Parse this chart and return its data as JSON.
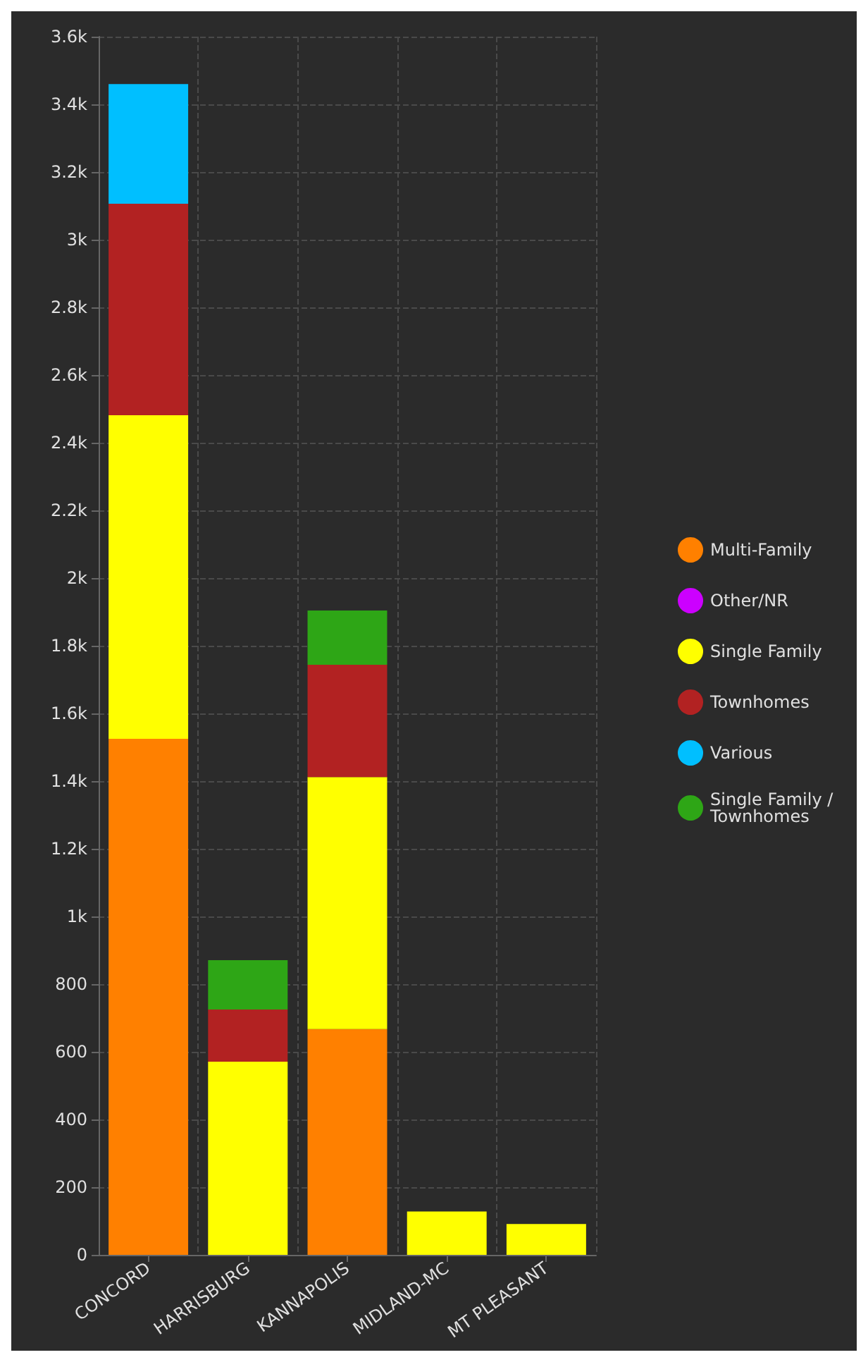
{
  "chart_data": {
    "type": "bar",
    "stacked": true,
    "categories": [
      "CONCORD",
      "HARRISBURG",
      "KANNAPOLIS",
      "MIDLAND-MC",
      "MT PLEASANT"
    ],
    "series": [
      {
        "name": "Multi-Family",
        "color": "#ff8000",
        "values": [
          1525,
          null,
          667,
          null,
          null
        ]
      },
      {
        "name": "Other/NR",
        "color": "#cc00ff",
        "values": [
          null,
          null,
          null,
          null,
          null
        ]
      },
      {
        "name": "Single Family",
        "color": "#ffff00",
        "values": [
          956,
          571,
          745,
          128,
          91
        ]
      },
      {
        "name": "Townhomes",
        "color": "#b22222",
        "values": [
          625,
          154,
          332,
          null,
          null
        ]
      },
      {
        "name": "Various",
        "color": "#00bfff",
        "values": [
          354,
          null,
          null,
          null,
          null
        ]
      },
      {
        "name": "Single Family / Townhomes",
        "color": "#2ea616",
        "values": [
          null,
          146,
          160,
          null,
          null
        ]
      }
    ],
    "ylim": [
      0,
      3600
    ],
    "yticks": [
      0,
      200,
      400,
      600,
      800,
      {
        "value": 1000,
        "label": "1k"
      },
      {
        "value": 1200,
        "label": "1.2k"
      },
      {
        "value": 1400,
        "label": "1.4k"
      },
      {
        "value": 1600,
        "label": "1.6k"
      },
      {
        "value": 1800,
        "label": "1.8k"
      },
      {
        "value": 2000,
        "label": "2k"
      },
      {
        "value": 2200,
        "label": "2.2k"
      },
      {
        "value": 2400,
        "label": "2.4k"
      },
      {
        "value": 2600,
        "label": "2.6k"
      },
      {
        "value": 2800,
        "label": "2.8k"
      },
      {
        "value": 3000,
        "label": "3k"
      },
      {
        "value": 3200,
        "label": "3.2k"
      },
      {
        "value": 3400,
        "label": "3.4k"
      },
      {
        "value": 3600,
        "label": "3.6k"
      }
    ],
    "grid": true,
    "legend": "right"
  }
}
